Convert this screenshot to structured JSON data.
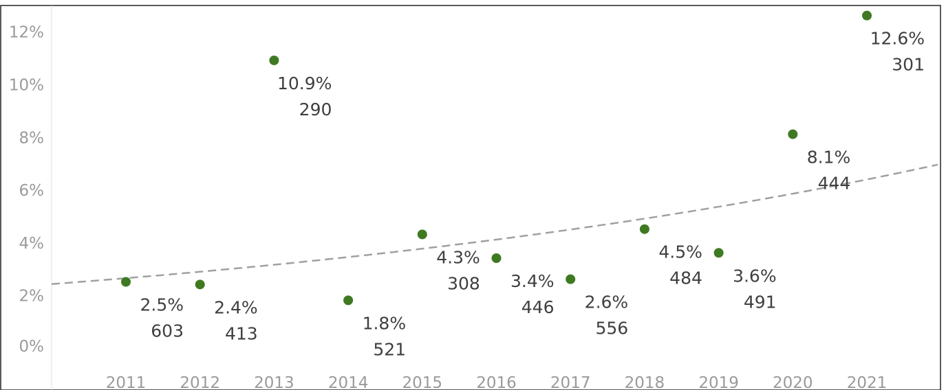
{
  "chart_data": {
    "type": "scatter",
    "title": "",
    "xlabel": "",
    "ylabel": "",
    "x": [
      "2011",
      "2012",
      "2013",
      "2014",
      "2015",
      "2016",
      "2017",
      "2018",
      "2019",
      "2020",
      "2021"
    ],
    "series": [
      {
        "values": [
          2.5,
          2.4,
          10.9,
          1.8,
          4.3,
          3.4,
          2.6,
          4.5,
          3.6,
          8.1,
          12.6
        ],
        "pct_labels": [
          "2.5%",
          "2.4%",
          "10.9%",
          "1.8%",
          "4.3%",
          "3.4%",
          "2.6%",
          "4.5%",
          "3.6%",
          "8.1%",
          "12.6%"
        ],
        "count_labels": [
          "603",
          "413",
          "290",
          "521",
          "308",
          "446",
          "556",
          "484",
          "491",
          "444",
          "301"
        ]
      }
    ],
    "y_ticks": [
      "0%",
      "2%",
      "4%",
      "6%",
      "8%",
      "10%",
      "12%"
    ],
    "ylim": [
      -0.9,
      13.5
    ],
    "trendline": {
      "style": "dashed",
      "type": "exponential"
    },
    "grid": false,
    "marker_color": "#3f7a22",
    "trend_color": "#a0a0a0"
  }
}
